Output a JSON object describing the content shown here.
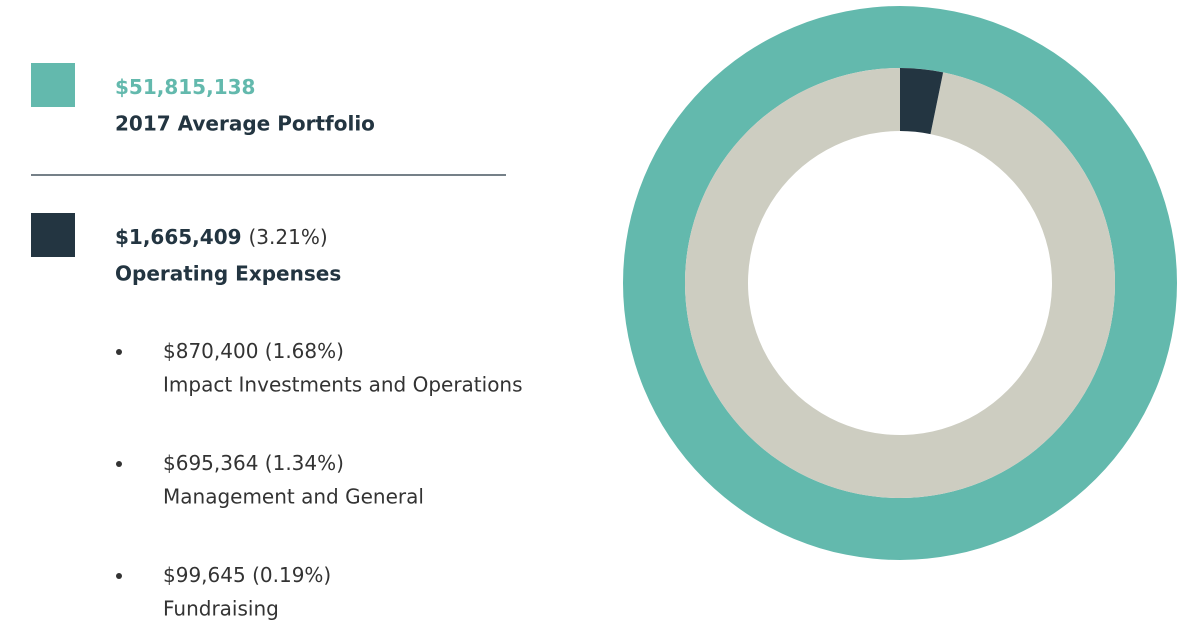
{
  "chart_data": {
    "type": "donut",
    "remainder_color": "#cdcdc1",
    "series": [
      {
        "name": "2017 Average Portfolio",
        "color": "#63b9ad",
        "values": [
          51815138
        ],
        "value_labels": [
          "$51,815,138"
        ]
      },
      {
        "name": "Operating Expenses",
        "color": "#233541",
        "values": [
          1665409
        ],
        "value_labels": [
          "$1,665,409"
        ],
        "share_label": "(3.21%)"
      }
    ],
    "breakdown": [
      {
        "amount": "$870,400",
        "share": "(1.68%)",
        "name": "Impact Investments and Operations"
      },
      {
        "amount": "$695,364",
        "share": "(1.34%)",
        "name": "Management and General"
      },
      {
        "amount": "$99,645",
        "share": "(0.19%)",
        "name": "Fundraising"
      }
    ]
  }
}
